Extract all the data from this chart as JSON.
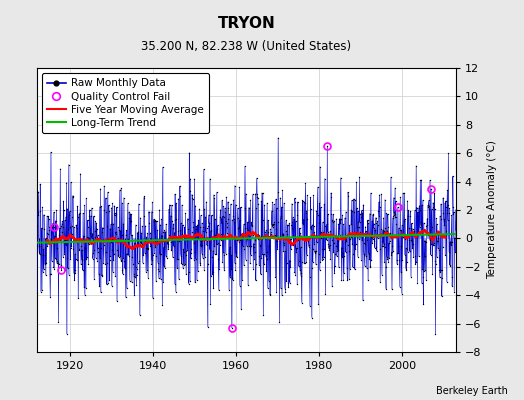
{
  "title": "TRYON",
  "subtitle": "35.200 N, 82.238 W (United States)",
  "ylabel": "Temperature Anomaly (°C)",
  "credit": "Berkeley Earth",
  "year_start": 1912,
  "year_end": 2013,
  "ylim": [
    -8,
    12
  ],
  "yticks": [
    -8,
    -6,
    -4,
    -2,
    0,
    2,
    4,
    6,
    8,
    10,
    12
  ],
  "xticks": [
    1920,
    1940,
    1960,
    1980,
    2000
  ],
  "raw_color": "#0000cc",
  "raw_dot_color": "#000000",
  "ma_color": "#ff0000",
  "trend_color": "#00bb00",
  "qc_color": "#ff00ff",
  "stem_color": "#7788ee",
  "background_color": "#e8e8e8",
  "plot_bg": "#ffffff",
  "legend_fontsize": 7.5,
  "title_fontsize": 11,
  "subtitle_fontsize": 8.5,
  "seed": 17,
  "n_months": 1213,
  "qc_fail_indices": [
    49,
    71,
    564,
    840,
    1044,
    1140
  ],
  "qc_fail_values": [
    0.8,
    -2.2,
    -6.3,
    6.5,
    2.2,
    3.5
  ],
  "long_term_slope": 0.006,
  "long_term_intercept": -0.3
}
